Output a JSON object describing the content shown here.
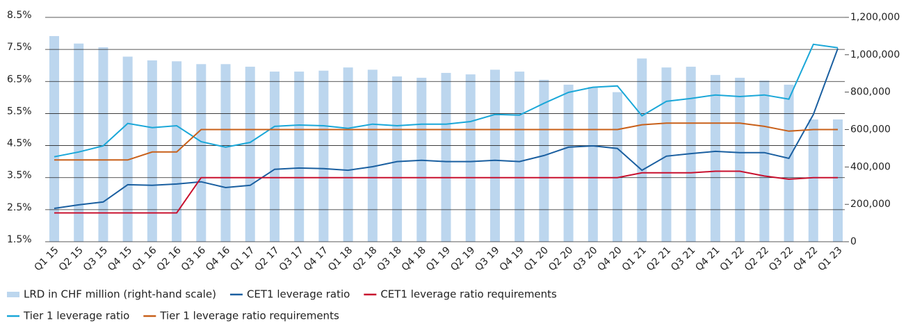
{
  "chart_data": {
    "type": "combo",
    "categories": [
      "Q1 15",
      "Q2 15",
      "Q3 15",
      "Q4 15",
      "Q1 16",
      "Q2 16",
      "Q3 16",
      "Q4 16",
      "Q1 17",
      "Q2 17",
      "Q3 17",
      "Q4 17",
      "Q1 18",
      "Q2 18",
      "Q3 18",
      "Q4 18",
      "Q1 19",
      "Q2 19",
      "Q3 19",
      "Q4 19",
      "Q1 20",
      "Q2 20",
      "Q3 20",
      "Q4 20",
      "Q1 21",
      "Q2 21",
      "Q3 21",
      "Q4 21",
      "Q1 22",
      "Q2 22",
      "Q3 22",
      "Q4 22",
      "Q1 23"
    ],
    "series": [
      {
        "name": "LRD in CHF million (right-hand scale)",
        "type": "bar",
        "axis": "y2",
        "color": "#bcd6ee",
        "values": [
          1100000,
          1060000,
          1040000,
          990000,
          970000,
          965000,
          950000,
          950000,
          936000,
          910000,
          910000,
          915000,
          932000,
          920000,
          884000,
          877000,
          903000,
          895000,
          920000,
          910000,
          866000,
          840000,
          828000,
          800000,
          980000,
          932000,
          936000,
          892000,
          877000,
          862000,
          840000,
          654000,
          654000
        ]
      },
      {
        "name": "CET1 leverage ratio",
        "type": "line",
        "color": "#1a5fa0",
        "values": [
          2.54,
          2.65,
          2.74,
          3.28,
          3.26,
          3.3,
          3.37,
          3.19,
          3.26,
          3.76,
          3.8,
          3.78,
          3.73,
          3.84,
          4.0,
          4.04,
          4.0,
          4.0,
          4.04,
          4.0,
          4.19,
          4.45,
          4.49,
          4.41,
          3.73,
          4.17,
          4.25,
          4.32,
          4.28,
          4.28,
          4.1,
          5.47,
          7.53
        ]
      },
      {
        "name": "CET1 leverage ratio requirements",
        "type": "line",
        "color": "#c8102e",
        "values": [
          2.4,
          2.4,
          2.4,
          2.4,
          2.4,
          2.4,
          3.5,
          3.5,
          3.5,
          3.5,
          3.5,
          3.5,
          3.5,
          3.5,
          3.5,
          3.5,
          3.5,
          3.5,
          3.5,
          3.5,
          3.5,
          3.5,
          3.5,
          3.5,
          3.65,
          3.65,
          3.65,
          3.7,
          3.7,
          3.55,
          3.45,
          3.5,
          3.5
        ]
      },
      {
        "name": "Tier 1 leverage ratio",
        "type": "line",
        "color": "#1aa7d8",
        "values": [
          4.15,
          4.3,
          4.49,
          5.19,
          5.06,
          5.12,
          4.62,
          4.45,
          4.6,
          5.1,
          5.14,
          5.12,
          5.04,
          5.17,
          5.12,
          5.17,
          5.17,
          5.25,
          5.47,
          5.45,
          5.82,
          6.16,
          6.32,
          6.36,
          5.43,
          5.88,
          5.97,
          6.08,
          6.03,
          6.08,
          5.95,
          7.66,
          7.55
        ]
      },
      {
        "name": "Tier 1 leverage ratio requirements",
        "type": "line",
        "color": "#c8601a",
        "values": [
          4.05,
          4.05,
          4.05,
          4.05,
          4.3,
          4.3,
          5.0,
          5.0,
          5.0,
          5.0,
          5.0,
          5.0,
          5.0,
          5.0,
          5.0,
          5.0,
          5.0,
          5.0,
          5.0,
          5.0,
          5.0,
          5.0,
          5.0,
          5.0,
          5.15,
          5.2,
          5.2,
          5.2,
          5.2,
          5.1,
          4.95,
          5.0,
          5.0
        ]
      }
    ],
    "ylim": [
      1.5,
      8.5
    ],
    "yticks": [
      {
        "value": 1.5,
        "label": "1.5%"
      },
      {
        "value": 2.5,
        "label": "2.5%"
      },
      {
        "value": 3.5,
        "label": "3.5%"
      },
      {
        "value": 4.5,
        "label": "4.5%"
      },
      {
        "value": 5.5,
        "label": "5.5%"
      },
      {
        "value": 6.5,
        "label": "6.5%"
      },
      {
        "value": 7.5,
        "label": "7.5%"
      },
      {
        "value": 8.5,
        "label": "8.5%"
      }
    ],
    "y2lim": [
      0,
      1200000
    ],
    "y2ticks": [
      0,
      {
        "value": 200000,
        "label": "200,000"
      },
      {
        "value": 400000,
        "label": "400,000"
      },
      {
        "value": 600000,
        "label": "600,000"
      },
      {
        "value": 800000,
        "label": "800,000"
      },
      {
        "value": 1000000,
        "label": "1,000,000"
      },
      {
        "value": 1200000,
        "label": "1,200,000"
      }
    ],
    "grid": true
  }
}
